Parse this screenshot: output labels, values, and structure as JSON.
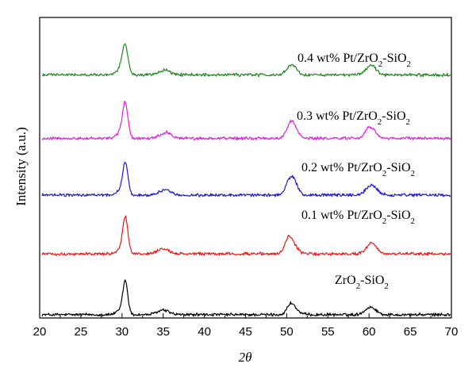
{
  "chart_data": {
    "type": "line",
    "xlabel": "2θ",
    "ylabel": "Intensity (a.u.)",
    "xlim": [
      20,
      70
    ],
    "x_ticks": [
      "20",
      "25",
      "30",
      "35",
      "40",
      "45",
      "50",
      "55",
      "60",
      "65",
      "70"
    ],
    "grid": false,
    "y_tick_labels": false,
    "series": [
      {
        "name": "ZrO₂-SiO₂",
        "label_parts": {
          "lead": "",
          "zr": "ZrO",
          "si": "-SiO"
        },
        "color": "#000000",
        "baseline": 0.05,
        "peaks": [
          {
            "x": 29.8,
            "h": 0.06,
            "w": 0.5
          },
          {
            "x": 30.4,
            "h": 0.49,
            "w": 0.3
          },
          {
            "x": 35.0,
            "h": 0.07,
            "w": 0.7
          },
          {
            "x": 50.5,
            "h": 0.16,
            "w": 0.45
          },
          {
            "x": 51.2,
            "h": 0.04,
            "w": 0.5
          },
          {
            "x": 59.9,
            "h": 0.07,
            "w": 0.6
          },
          {
            "x": 60.5,
            "h": 0.06,
            "w": 0.55
          }
        ]
      },
      {
        "name": "0.1 wt% Pt/ZrO₂-SiO₂",
        "label_parts": {
          "lead": "0.1 wt% Pt/",
          "zr": "ZrO",
          "si": "-SiO"
        },
        "color": "#e31a1c",
        "baseline": 0.97,
        "peaks": [
          {
            "x": 29.8,
            "h": 0.06,
            "w": 0.5
          },
          {
            "x": 30.4,
            "h": 0.54,
            "w": 0.32
          },
          {
            "x": 35.0,
            "h": 0.07,
            "w": 0.7
          },
          {
            "x": 50.3,
            "h": 0.25,
            "w": 0.5
          },
          {
            "x": 51.1,
            "h": 0.06,
            "w": 0.5
          },
          {
            "x": 60.3,
            "h": 0.17,
            "w": 0.6
          }
        ]
      },
      {
        "name": "0.2 wt% Pt/ZrO₂-SiO₂",
        "label_parts": {
          "lead": "0.2 wt% Pt/",
          "zr": "ZrO",
          "si": "-SiO"
        },
        "color": "#1a1adb",
        "baseline": 1.86,
        "peaks": [
          {
            "x": 29.8,
            "h": 0.06,
            "w": 0.5
          },
          {
            "x": 30.4,
            "h": 0.47,
            "w": 0.32
          },
          {
            "x": 35.2,
            "h": 0.08,
            "w": 0.7
          },
          {
            "x": 50.5,
            "h": 0.24,
            "w": 0.55
          },
          {
            "x": 51.0,
            "h": 0.07,
            "w": 0.5
          },
          {
            "x": 60.3,
            "h": 0.15,
            "w": 0.65
          }
        ]
      },
      {
        "name": "0.3 wt% Pt/ZrO₂-SiO₂",
        "label_parts": {
          "lead": "0.3 wt% Pt/",
          "zr": "ZrO",
          "si": "-SiO"
        },
        "color": "#e11ee1",
        "baseline": 2.72,
        "peaks": [
          {
            "x": 29.9,
            "h": 0.1,
            "w": 0.5
          },
          {
            "x": 30.4,
            "h": 0.49,
            "w": 0.32
          },
          {
            "x": 35.3,
            "h": 0.09,
            "w": 0.7
          },
          {
            "x": 50.5,
            "h": 0.22,
            "w": 0.5
          },
          {
            "x": 51.0,
            "h": 0.07,
            "w": 0.5
          },
          {
            "x": 59.8,
            "h": 0.12,
            "w": 0.4
          },
          {
            "x": 60.5,
            "h": 0.12,
            "w": 0.45
          }
        ]
      },
      {
        "name": "0.4 wt% Pt/ZrO₂-SiO₂",
        "label_parts": {
          "lead": "0.4 wt% Pt/",
          "zr": "ZrO",
          "si": "-SiO"
        },
        "color": "#1e8a1e",
        "baseline": 3.68,
        "peaks": [
          {
            "x": 29.9,
            "h": 0.1,
            "w": 0.5
          },
          {
            "x": 30.4,
            "h": 0.4,
            "w": 0.34
          },
          {
            "x": 35.2,
            "h": 0.07,
            "w": 0.7
          },
          {
            "x": 50.6,
            "h": 0.16,
            "w": 0.55
          },
          {
            "x": 60.0,
            "h": 0.1,
            "w": 0.6
          },
          {
            "x": 60.6,
            "h": 0.06,
            "w": 0.5
          }
        ]
      }
    ]
  }
}
